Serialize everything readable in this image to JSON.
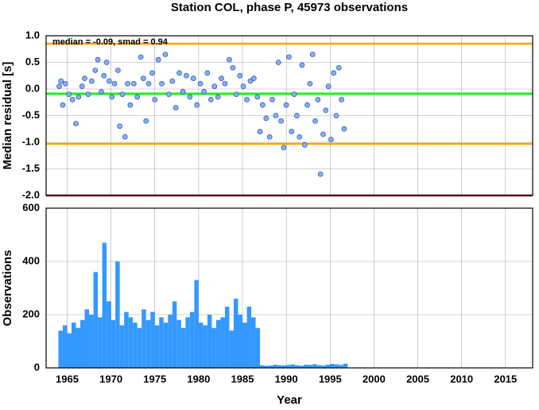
{
  "title": "Station COL, phase P, 45973 observations",
  "chart_data": [
    {
      "type": "scatter",
      "y_label": "Median residual [s]",
      "annotation": "median = -0.09, smad = 0.94",
      "xlim": [
        1962.6,
        2018.1
      ],
      "ylim": [
        -2.0,
        1.0
      ],
      "yticks": [
        {
          "value": 1.0,
          "label": "1.0"
        },
        {
          "value": 0.5,
          "label": "0.5"
        },
        {
          "value": 0.0,
          "label": "0.0"
        },
        {
          "value": -0.5,
          "label": "-0.5"
        },
        {
          "value": -1.0,
          "label": "-1.0"
        },
        {
          "value": -1.5,
          "label": "-1.5"
        },
        {
          "value": -2.0,
          "label": "-2.0"
        }
      ],
      "color": "#87aef7",
      "grid": true,
      "hlines": [
        {
          "value": 0.85,
          "color": "#ffa500"
        },
        {
          "value": -0.09,
          "color": "#22ee22"
        },
        {
          "value": -1.03,
          "color": "#ffa500"
        },
        {
          "value": -2.0,
          "color": "#b22222"
        }
      ],
      "x": [
        1964.1,
        1964.3,
        1964.5,
        1964.8,
        1965.2,
        1965.6,
        1966.0,
        1966.3,
        1966.7,
        1967.0,
        1967.4,
        1967.8,
        1968.2,
        1968.5,
        1968.9,
        1969.2,
        1969.5,
        1969.8,
        1970.1,
        1970.4,
        1970.8,
        1971.0,
        1971.3,
        1971.6,
        1971.9,
        1972.2,
        1972.6,
        1973.0,
        1973.4,
        1973.7,
        1974.0,
        1974.3,
        1974.7,
        1975.0,
        1975.4,
        1975.8,
        1976.2,
        1976.6,
        1977.0,
        1977.4,
        1977.8,
        1978.2,
        1978.6,
        1979.0,
        1979.4,
        1979.8,
        1980.2,
        1980.6,
        1981.0,
        1981.4,
        1981.8,
        1982.2,
        1982.6,
        1983.0,
        1983.5,
        1983.9,
        1984.3,
        1984.7,
        1985.1,
        1985.5,
        1985.9,
        1986.3,
        1986.7,
        1987.0,
        1987.3,
        1987.7,
        1988.1,
        1988.4,
        1988.8,
        1989.1,
        1989.4,
        1989.7,
        1990.0,
        1990.3,
        1990.6,
        1990.9,
        1991.2,
        1991.5,
        1991.8,
        1992.1,
        1992.4,
        1992.7,
        1993.0,
        1993.3,
        1993.6,
        1993.9,
        1994.2,
        1994.5,
        1994.8,
        1995.1,
        1995.4,
        1995.7,
        1996.0,
        1996.3,
        1996.6
      ],
      "y": [
        0.05,
        0.15,
        -0.3,
        0.1,
        -0.1,
        -0.2,
        -0.65,
        -0.15,
        0.05,
        0.2,
        -0.1,
        0.15,
        0.35,
        0.55,
        -0.05,
        0.25,
        0.5,
        0.15,
        -0.15,
        0.1,
        0.35,
        -0.7,
        -0.1,
        -0.9,
        0.1,
        -0.3,
        0.1,
        -0.15,
        0.6,
        0.2,
        -0.6,
        0.1,
        0.3,
        -0.2,
        0.55,
        0.1,
        0.65,
        -0.1,
        0.15,
        -0.35,
        0.3,
        -0.05,
        0.25,
        -0.15,
        0.2,
        -0.3,
        0.1,
        -0.05,
        0.3,
        -0.2,
        0.05,
        -0.15,
        0.2,
        0.1,
        0.55,
        0.4,
        -0.1,
        0.25,
        0.05,
        -0.2,
        0.15,
        0.2,
        -0.15,
        -0.8,
        -0.3,
        -0.55,
        -0.9,
        -0.2,
        -0.5,
        0.5,
        -0.6,
        -1.1,
        -0.3,
        0.6,
        -0.8,
        -0.1,
        -0.5,
        -0.9,
        0.45,
        -1.05,
        -0.3,
        0.1,
        0.65,
        -0.6,
        -0.2,
        -1.6,
        -0.85,
        -0.4,
        0.05,
        -0.95,
        0.3,
        -0.5,
        0.4,
        -0.2,
        -0.75
      ]
    },
    {
      "type": "histogram",
      "y_label": "Observations",
      "x_label": "Year",
      "color": "#3399ff",
      "grid": true,
      "xlim": [
        1962.6,
        2018.1
      ],
      "ylim": [
        0,
        600
      ],
      "yticks": [
        0,
        200,
        400,
        600
      ],
      "xticks": [
        1965,
        1970,
        1975,
        1980,
        1985,
        1990,
        1995,
        2000,
        2005,
        2010,
        2015
      ],
      "bins": [
        1964,
        1964.5,
        1965,
        1965.5,
        1966,
        1966.5,
        1967,
        1967.5,
        1968,
        1968.5,
        1969,
        1969.5,
        1970,
        1970.5,
        1971,
        1971.5,
        1972,
        1972.5,
        1973,
        1973.5,
        1974,
        1974.5,
        1975,
        1975.5,
        1976,
        1976.5,
        1977,
        1977.5,
        1978,
        1978.5,
        1979,
        1979.5,
        1980,
        1980.5,
        1981,
        1981.5,
        1982,
        1982.5,
        1983,
        1983.5,
        1984,
        1984.5,
        1985,
        1985.5,
        1986,
        1986.5,
        1987,
        1987.5,
        1988,
        1988.5,
        1989,
        1989.5,
        1990,
        1990.5,
        1991,
        1991.5,
        1992,
        1992.5,
        1993,
        1993.5,
        1994,
        1994.5,
        1995,
        1995.5,
        1996,
        1996.5,
        1997
      ],
      "values": [
        140,
        160,
        130,
        170,
        150,
        180,
        220,
        200,
        360,
        190,
        470,
        250,
        180,
        400,
        160,
        210,
        190,
        170,
        150,
        220,
        180,
        210,
        160,
        190,
        170,
        200,
        250,
        180,
        150,
        190,
        210,
        330,
        170,
        160,
        200,
        150,
        180,
        190,
        230,
        140,
        260,
        200,
        170,
        230,
        190,
        150,
        10,
        8,
        9,
        12,
        10,
        9,
        11,
        13,
        10,
        8,
        12,
        11,
        14,
        10,
        9,
        12,
        15,
        13,
        11,
        16
      ]
    }
  ]
}
